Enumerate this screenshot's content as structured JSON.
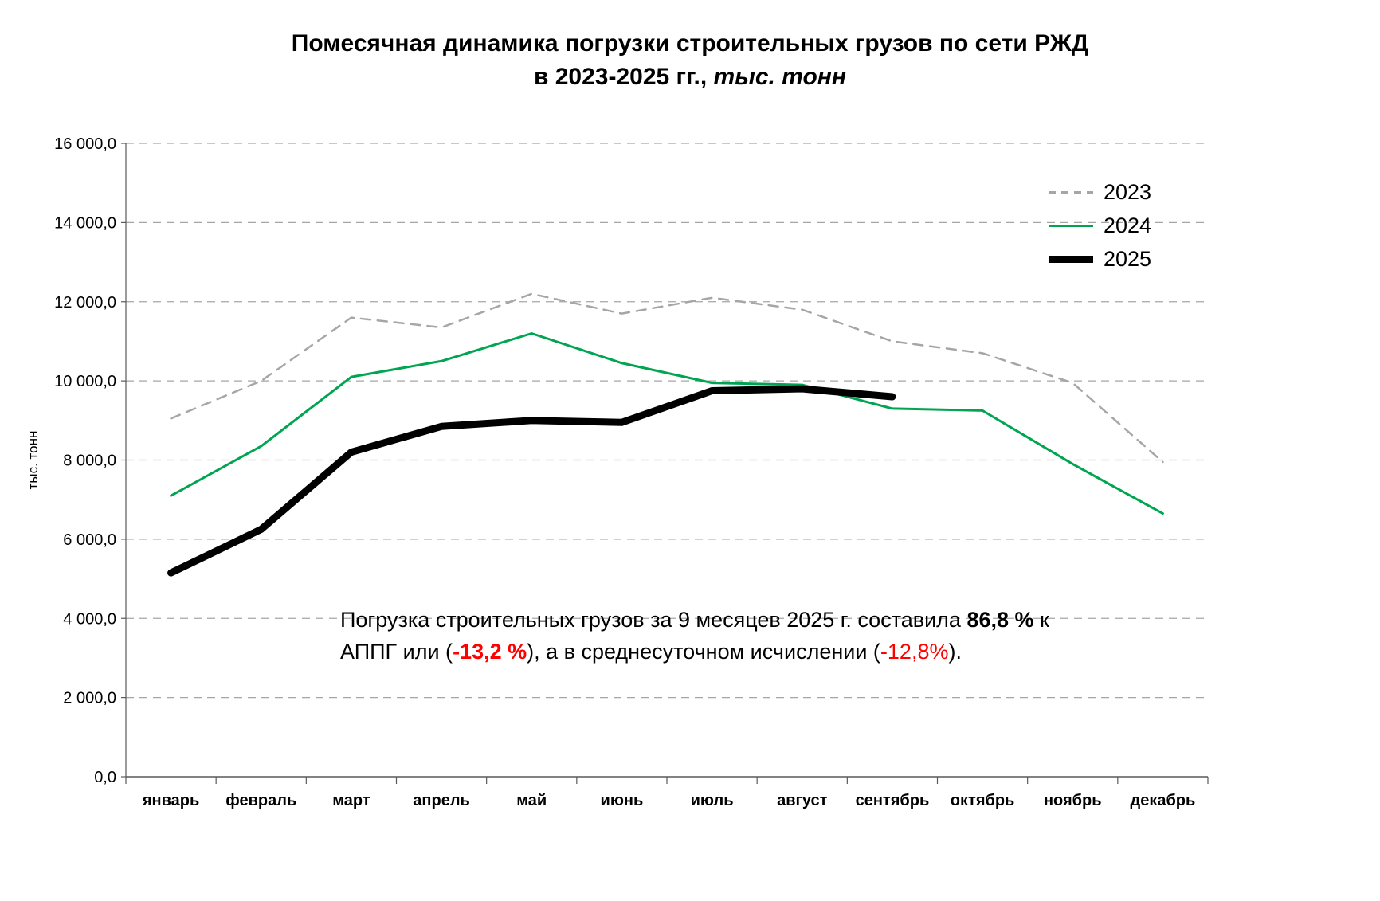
{
  "title": {
    "line1": "Помесячная динамика  погрузки строительных грузов по сети РЖД",
    "line2_prefix": "в 2023-2025 гг., ",
    "line2_italic": "тыс. тонн"
  },
  "y_axis": {
    "title": "тыс. тонн",
    "min": 0,
    "max": 16000,
    "ticks": [
      {
        "value": 16000,
        "label": "16 000,0"
      },
      {
        "value": 14000,
        "label": "14 000,0"
      },
      {
        "value": 12000,
        "label": "12 000,0"
      },
      {
        "value": 10000,
        "label": "10 000,0"
      },
      {
        "value": 8000,
        "label": "8 000,0"
      },
      {
        "value": 6000,
        "label": "6 000,0"
      },
      {
        "value": 4000,
        "label": "4 000,0"
      },
      {
        "value": 2000,
        "label": "2 000,0"
      },
      {
        "value": 0,
        "label": "0,0"
      }
    ]
  },
  "chart_data": {
    "type": "line",
    "title": "Помесячная динамика погрузки строительных грузов по сети РЖД в 2023-2025 гг., тыс. тонн",
    "xlabel": "",
    "ylabel": "тыс. тонн",
    "ylim": [
      0,
      16000
    ],
    "grid": "horizontal-dashed",
    "legend_position": "top-right-inside",
    "categories": [
      "январь",
      "февраль",
      "март",
      "апрель",
      "май",
      "июнь",
      "июль",
      "август",
      "сентябрь",
      "октябрь",
      "ноябрь",
      "декабрь"
    ],
    "series": [
      {
        "name": "2023",
        "color": "#a6a6a6",
        "style": "dashed",
        "width": 2.5,
        "values": [
          9050,
          10000,
          11600,
          11350,
          12200,
          11700,
          12100,
          11800,
          11000,
          10700,
          9950,
          7950
        ]
      },
      {
        "name": "2024",
        "color": "#00a551",
        "style": "solid",
        "width": 3,
        "values": [
          7100,
          8350,
          10100,
          10500,
          11200,
          10450,
          9950,
          9900,
          9300,
          9250,
          7900,
          6650
        ]
      },
      {
        "name": "2025",
        "color": "#000000",
        "style": "solid",
        "width": 9,
        "values": [
          5150,
          6250,
          8200,
          8850,
          9000,
          8950,
          9750,
          9800,
          9600,
          null,
          null,
          null
        ]
      }
    ]
  },
  "annotation": {
    "line1_normal": "Погрузка строительных грузов за 9 месяцев  2025 г. составила ",
    "line1_bold": "86,8 %",
    "line1_tail": " к",
    "line2_part1": "АППГ или (",
    "line2_red_bold": "-13,2 %",
    "line2_part2": "),  а в среднесуточном исчислении (",
    "line2_red": "-12,8%",
    "line2_part3": ")."
  },
  "colors": {
    "grid": "#a6a6a6",
    "axis_line": "#595959",
    "text": "#000000",
    "red": "#ff0000",
    "background": "#ffffff"
  }
}
